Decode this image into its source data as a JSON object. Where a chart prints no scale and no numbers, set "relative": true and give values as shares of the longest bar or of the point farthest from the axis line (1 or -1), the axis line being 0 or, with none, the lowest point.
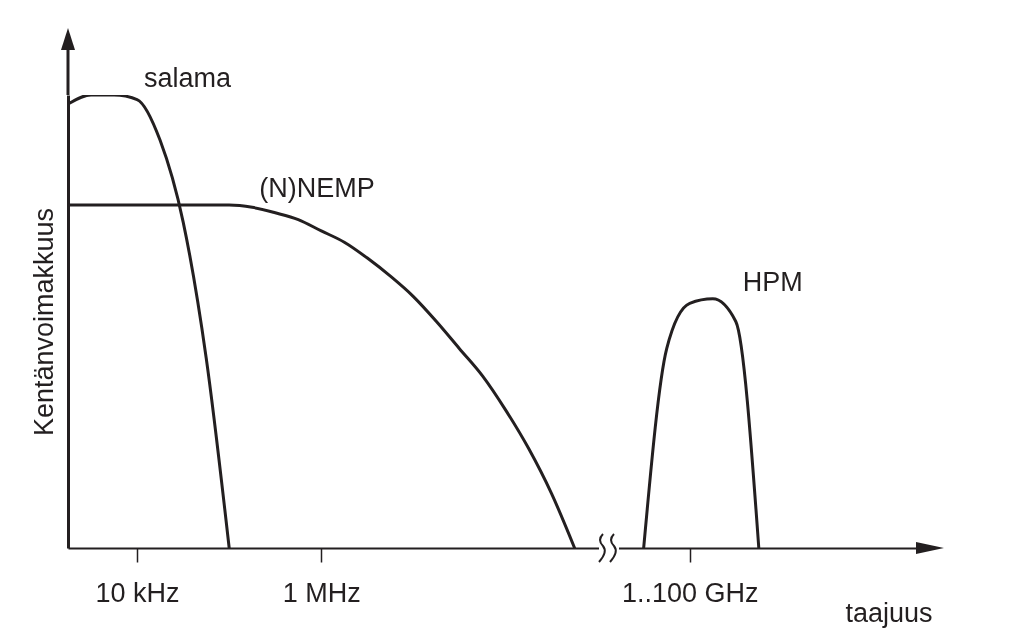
{
  "chart_data": {
    "type": "line",
    "relative": true,
    "xlabel": "taajuus",
    "ylabel": "Kentänvoimakkuus",
    "categories": [
      null,
      null,
      null,
      "10 kHz",
      null,
      null,
      null,
      null,
      null,
      null,
      null,
      "1 MHz",
      null,
      null,
      null,
      null,
      null,
      null,
      null,
      null,
      null,
      null,
      null,
      null,
      null,
      null,
      null,
      "1..100 GHz",
      null,
      null,
      null,
      null,
      null,
      null,
      null,
      null,
      null,
      null
    ],
    "grid": false,
    "legend": false,
    "series": [
      {
        "name": "salama",
        "color": "#231f20",
        "values": [
          0.98,
          1.0,
          1.0,
          0.99,
          0.9,
          0.72,
          0.42,
          0,
          null,
          null,
          null,
          null,
          null,
          null,
          null,
          null,
          null,
          null,
          null,
          null,
          null,
          null,
          null,
          null,
          null,
          null,
          null,
          null,
          null,
          null,
          null,
          null,
          null,
          null,
          null,
          null,
          null,
          null
        ]
      },
      {
        "name": "(N)NEMP",
        "color": "#231f20",
        "values": [
          0.757,
          0.757,
          0.757,
          0.757,
          0.757,
          0.757,
          0.757,
          0.757,
          0.752,
          0.74,
          0.725,
          0.7,
          0.675,
          0.64,
          0.6,
          0.555,
          0.5,
          0.44,
          0.38,
          0.305,
          0.22,
          0.12,
          0,
          null,
          null,
          null,
          null,
          null,
          null,
          null,
          null,
          null,
          null,
          null,
          null,
          null,
          null,
          null
        ]
      },
      {
        "name": "HPM",
        "color": "#231f20",
        "values": [
          null,
          null,
          null,
          null,
          null,
          null,
          null,
          null,
          null,
          null,
          null,
          null,
          null,
          null,
          null,
          null,
          null,
          null,
          null,
          null,
          null,
          null,
          null,
          null,
          null,
          0,
          0.44,
          0.54,
          0.55,
          0.5,
          0,
          null,
          null,
          null,
          null,
          null,
          null,
          null
        ]
      }
    ]
  }
}
